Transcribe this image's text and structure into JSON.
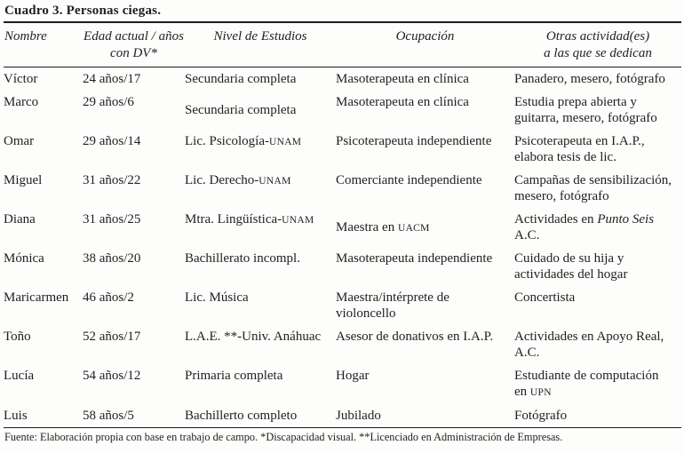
{
  "title": "Cuadro 3. Personas ciegas.",
  "columns": [
    {
      "key": "nombre",
      "label_lines": [
        "Nombre"
      ]
    },
    {
      "key": "edad",
      "label_lines": [
        "Edad actual / años",
        "con DV*"
      ]
    },
    {
      "key": "nivel",
      "label_lines": [
        "Nivel de Estudios"
      ]
    },
    {
      "key": "ocupacion",
      "label_lines": [
        "Ocupación"
      ]
    },
    {
      "key": "otras",
      "label_lines": [
        "Otras actividad(es)",
        "a las que se dedican"
      ]
    }
  ],
  "rows": [
    {
      "nombre": "Víctor",
      "edad": "24 años/17",
      "nivel": "Secundaria completa",
      "ocupacion": "Masoterapeuta en clínica",
      "otras": "Panadero, mesero, fotógrafo"
    },
    {
      "nombre": "Marco",
      "edad": "29 años/6",
      "nivel": {
        "valign": "middle",
        "lines": [
          "Secundaria completa"
        ]
      },
      "ocupacion": "Masoterapeuta en clínica",
      "otras": [
        "Estudia prepa abierta y",
        "guitarra, mesero, fotógrafo"
      ]
    },
    {
      "nombre": "Omar",
      "edad": "29 años/14",
      "nivel": [
        [
          {
            "t": "Lic. Psicología-"
          },
          {
            "t": "UNAM",
            "sc": true
          }
        ]
      ],
      "ocupacion": "Psicoterapeuta independiente",
      "otras": [
        "Psicoterapeuta en I.A.P.,",
        "elabora tesis de lic."
      ]
    },
    {
      "nombre": "Miguel",
      "edad": "31 años/22",
      "nivel": [
        [
          {
            "t": "Lic. Derecho-"
          },
          {
            "t": "UNAM",
            "sc": true
          }
        ]
      ],
      "ocupacion": "Comerciante independiente",
      "otras": [
        "Campañas de sensibilización,",
        "mesero, fotógrafo"
      ]
    },
    {
      "nombre": "Diana",
      "edad": "31 años/25",
      "nivel": [
        [
          {
            "t": "Mtra. Lingüística-"
          },
          {
            "t": "UNAM",
            "sc": true
          }
        ]
      ],
      "ocupacion": {
        "valign": "middle",
        "lines": [
          [
            {
              "t": "Maestra en "
            },
            {
              "t": "UACM",
              "sc": true
            }
          ]
        ]
      },
      "otras": {
        "valign": "middle",
        "lines": [
          [
            {
              "t": "Actividades en "
            },
            {
              "t": "Punto Seis",
              "i": true
            }
          ],
          "A.C."
        ]
      }
    },
    {
      "nombre": "Mónica",
      "edad": "38 años/20",
      "nivel": "Bachillerato incompl.",
      "ocupacion": "Masoterapeuta independiente",
      "otras": [
        "Cuidado de su hija y",
        "actividades del hogar"
      ]
    },
    {
      "nombre": "Maricarmen",
      "edad": "46 años/2",
      "nivel": "Lic. Música",
      "ocupacion": [
        "Maestra/intérprete de",
        "violoncello"
      ],
      "otras": "Concertista"
    },
    {
      "nombre": "Toño",
      "edad": "52 años/17",
      "nivel": "L.A.E. **-Univ. Anáhuac",
      "ocupacion": "Asesor de donativos en I.A.P.",
      "otras": {
        "valign": "middle",
        "lines": [
          "Actividades en Apoyo Real,",
          "A.C."
        ]
      }
    },
    {
      "nombre": "Lucía",
      "edad": "54 años/12",
      "nivel": "Primaria completa",
      "ocupacion": "Hogar",
      "otras": [
        "Estudiante de computación",
        [
          {
            "t": "en "
          },
          {
            "t": "UPN",
            "sc": true
          }
        ]
      ]
    },
    {
      "nombre": "Luis",
      "edad": "58 años/5",
      "nivel": "Bachillerto completo",
      "ocupacion": "Jubilado",
      "otras": "Fotógrafo"
    }
  ],
  "footer": {
    "text": "Fuente: Elaboración propia con base en trabajo de campo. *Discapacidad visual. **Licenciado en Administración de Empresas."
  }
}
